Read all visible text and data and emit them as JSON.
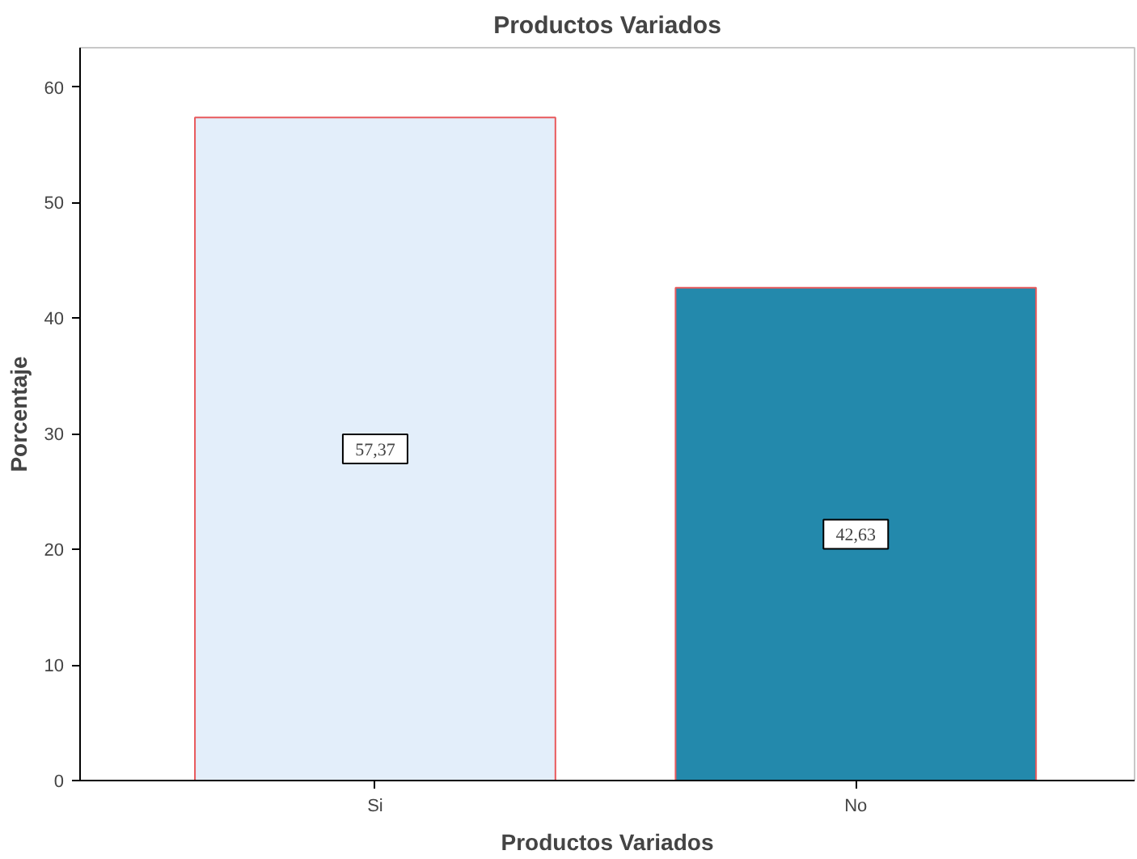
{
  "chart_data": {
    "type": "bar",
    "title": "Productos Variados",
    "xlabel": "Productos Variados",
    "ylabel": "Porcentaje",
    "categories": [
      "Si",
      "No"
    ],
    "values": [
      57.37,
      42.63
    ],
    "colors": [
      "#e3eefa",
      "#2389ac"
    ],
    "value_labels": [
      "57,37",
      "42,63"
    ],
    "ylim": [
      0,
      63.4
    ],
    "yticks": [
      0,
      10,
      20,
      30,
      40,
      50,
      60
    ],
    "grid": false
  }
}
